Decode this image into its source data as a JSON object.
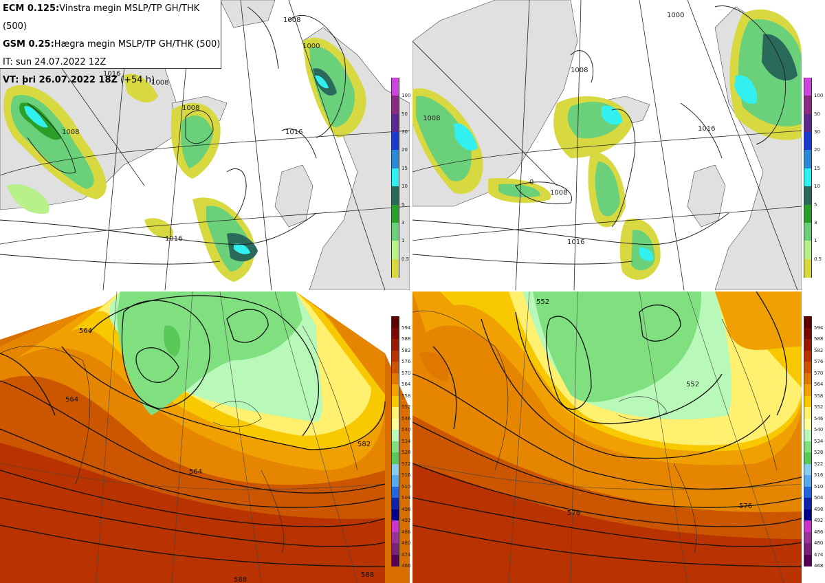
{
  "info": {
    "line1_bold": "ECM 0.125:",
    "line1_text": "Vinstra megin MSLP/TP GH/THK (500)",
    "line2_bold": "GSM 0.25:",
    "line2_text": "Hægra megin MSLP/TP GH/THK (500)",
    "line3_text": "IT: sun 24.07.2022 12Z",
    "line4_bold": "VT: þri 26.07.2022 18Z",
    "line4_text": " (+54 h)"
  },
  "precip_scale": {
    "levels": [
      "100",
      "50",
      "30",
      "20",
      "15",
      "10",
      "5",
      "3",
      "1",
      "0.5"
    ],
    "colors": [
      "#cc44dd",
      "#8a2a80",
      "#5a2a90",
      "#1a3ad0",
      "#2a88d8",
      "#33f0f0",
      "#2a6a5a",
      "#2aa02a",
      "#6ad07a",
      "#b8f08a",
      "#d8d840"
    ]
  },
  "thickness_scale": {
    "levels": [
      "594",
      "588",
      "582",
      "576",
      "570",
      "564",
      "558",
      "552",
      "546",
      "540",
      "534",
      "528",
      "522",
      "516",
      "510",
      "504",
      "498",
      "492",
      "486",
      "480",
      "474",
      "468"
    ],
    "colors": [
      "#5a0000",
      "#7a0a00",
      "#9a1a00",
      "#b83300",
      "#cc5500",
      "#e07800",
      "#f0a000",
      "#f8c800",
      "#fff070",
      "#ffff99",
      "#b8f8b8",
      "#80e080",
      "#58c858",
      "#88ccee",
      "#55aaee",
      "#2266dd",
      "#1122aa",
      "#000088",
      "#cc33cc",
      "#993399",
      "#772277",
      "#550055"
    ]
  },
  "contour_labels": {
    "tl": [
      "1016",
      "1008",
      "1008",
      "1008",
      "1016",
      "1016",
      "1000",
      "1008"
    ],
    "tr": [
      "1008",
      "1008",
      "0",
      "1008",
      "1016",
      "1016",
      "1000"
    ],
    "bl": [
      "564",
      "564",
      "564",
      "582",
      "588",
      "588"
    ],
    "br": [
      "552",
      "552",
      "576",
      "576"
    ]
  }
}
